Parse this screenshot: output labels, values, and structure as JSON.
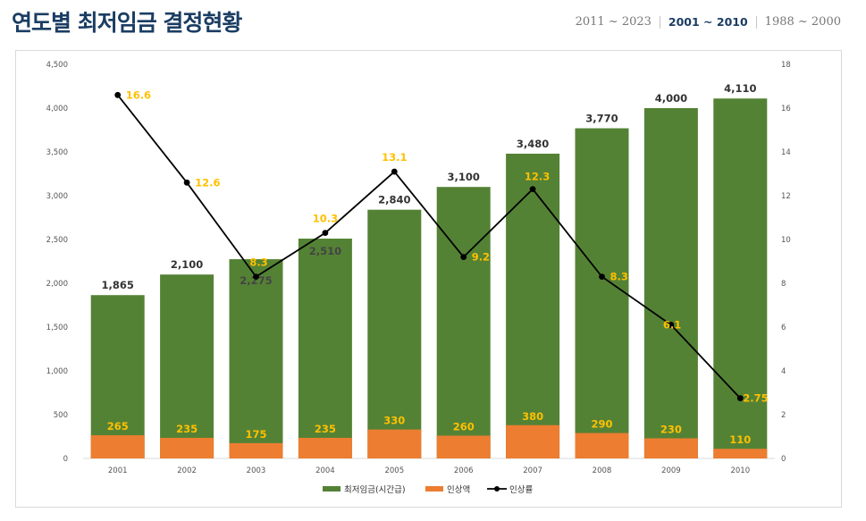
{
  "page": {
    "title": "연도별 최저임금 결정현황",
    "ranges": [
      {
        "label": "2011 ~ 2023",
        "active": false
      },
      {
        "label": "2001 ~ 2010",
        "active": true
      },
      {
        "label": "1988 ~ 2000",
        "active": false
      }
    ]
  },
  "colors": {
    "wage_bar": "#548235",
    "increase_bar": "#ed7d31",
    "rate_line": "#000000",
    "label_highlight": "#ffc000",
    "title": "#1b3d63"
  },
  "chart_data": {
    "type": "bar",
    "categories": [
      "2001",
      "2002",
      "2003",
      "2004",
      "2005",
      "2006",
      "2007",
      "2008",
      "2009",
      "2010"
    ],
    "series": [
      {
        "name": "최저임금(시간급)",
        "type": "bar",
        "axis": "left",
        "values": [
          1865,
          2100,
          2275,
          2510,
          2840,
          3100,
          3480,
          3770,
          4000,
          4110
        ],
        "labels": [
          "1,865",
          "2,100",
          "2,275",
          "2,510",
          "2,840",
          "3,100",
          "3,480",
          "3,770",
          "4,000",
          "4,110"
        ]
      },
      {
        "name": "인상액",
        "type": "bar",
        "axis": "left",
        "values": [
          265,
          235,
          175,
          235,
          330,
          260,
          380,
          290,
          230,
          110
        ],
        "labels": [
          "265",
          "235",
          "175",
          "235",
          "330",
          "260",
          "380",
          "290",
          "230",
          "110"
        ]
      },
      {
        "name": "인상률",
        "type": "line",
        "axis": "right",
        "values": [
          16.6,
          12.6,
          8.3,
          10.3,
          13.1,
          9.2,
          12.3,
          8.3,
          6.1,
          2.75
        ],
        "labels": [
          "16.6",
          "12.6",
          "8.3",
          "10.3",
          "13.1",
          "9.2",
          "12.3",
          "8.3",
          "6.1",
          "2.75"
        ]
      }
    ],
    "y_left": {
      "min": 0,
      "max": 4500,
      "step": 500,
      "ticks": [
        "0",
        "500",
        "1,000",
        "1,500",
        "2,000",
        "2,500",
        "3,000",
        "3,500",
        "4,000",
        "4,500"
      ]
    },
    "y_right": {
      "min": 0,
      "max": 18,
      "step": 2,
      "ticks": [
        "0",
        "2",
        "4",
        "6",
        "8",
        "10",
        "12",
        "14",
        "16",
        "18"
      ]
    },
    "grid": false,
    "legend_position": "bottom"
  }
}
